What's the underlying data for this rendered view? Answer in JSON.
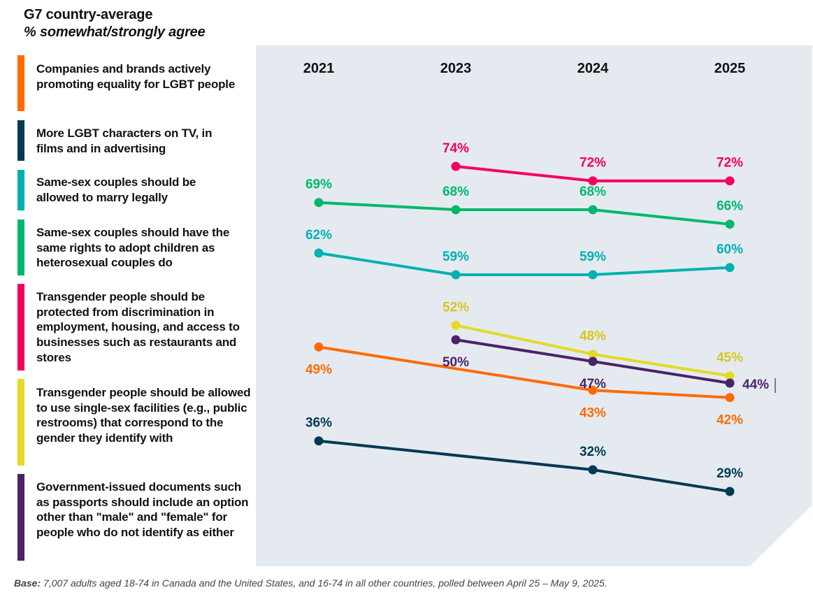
{
  "header": {
    "title": "G7 country-average",
    "subtitle": "% somewhat/strongly agree"
  },
  "footer": {
    "base_label": "Base:",
    "base_text": " 7,007 adults aged 18-74 in Canada and the United States, and 16-74 in all other countries, polled between April 25 – May 9, 2025."
  },
  "chart_data": {
    "type": "line",
    "title": "G7 country-average",
    "subtitle": "% somewhat/strongly agree",
    "xlabel": "",
    "ylabel": "",
    "x": [
      "2021",
      "2023",
      "2024",
      "2025"
    ],
    "ylim": [
      25,
      78
    ],
    "grid": false,
    "legend_position": "left",
    "series": [
      {
        "name": "Companies and brands actively promoting equality for LGBT people",
        "color": "#FF6B00",
        "values": [
          49,
          null,
          43,
          42
        ],
        "labels": [
          "49%",
          null,
          "43%",
          "42%"
        ],
        "label_pos": [
          "below",
          null,
          "below",
          "below"
        ]
      },
      {
        "name": "More LGBT characters on TV, in films and in advertising",
        "color": "#003A52",
        "values": [
          36,
          null,
          32,
          29
        ],
        "labels": [
          "36%",
          null,
          "32%",
          "29%"
        ],
        "label_pos": [
          "above",
          null,
          "above",
          "above"
        ]
      },
      {
        "name": "Same-sex couples should be allowed to marry legally",
        "color": "#00B1B0",
        "values": [
          62,
          59,
          59,
          60
        ],
        "labels": [
          "62%",
          "59%",
          "59%",
          "60%"
        ],
        "label_pos": [
          "above",
          "above",
          "above",
          "above"
        ]
      },
      {
        "name": "Same-sex couples should have the same rights to adopt children as heterosexual couples do",
        "color": "#00B86B",
        "values": [
          69,
          68,
          68,
          66
        ],
        "labels": [
          "69%",
          "68%",
          "68%",
          "66%"
        ],
        "label_pos": [
          "above",
          "above",
          "above",
          "above"
        ]
      },
      {
        "name": "Transgender people should be protected from discrimination in employment, housing, and access to businesses such as restaurants and stores",
        "color": "#F5005A",
        "values": [
          null,
          74,
          72,
          72
        ],
        "labels": [
          null,
          "74%",
          "72%",
          "72%"
        ],
        "label_pos": [
          null,
          "above",
          "above",
          "above"
        ]
      },
      {
        "name": "Transgender people should be allowed to use single-sex facilities (e.g., public restrooms) that correspond to the gender they identify with",
        "color": "#E3DA28",
        "values": [
          null,
          52,
          48,
          45
        ],
        "labels": [
          null,
          "52%",
          "48%",
          "45%"
        ],
        "label_pos": [
          null,
          "above",
          "above",
          "above"
        ]
      },
      {
        "name": "Government-issued documents such as passports should include an option other than \"male\" and \"female\" for people who do not identify as either",
        "color": "#4B2367",
        "values": [
          null,
          50,
          47,
          44
        ],
        "labels": [
          null,
          "50%",
          "47%",
          "44%"
        ],
        "label_pos": [
          null,
          "below",
          "below",
          "right"
        ]
      }
    ]
  },
  "label_colors": {
    "#E3DA28": "#D4C81C"
  },
  "panel_color": "#E5EAF1"
}
